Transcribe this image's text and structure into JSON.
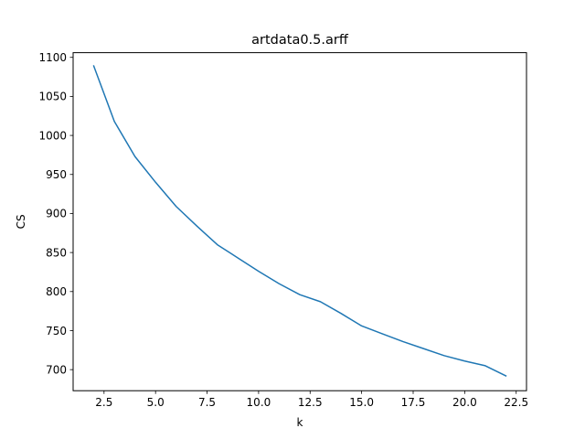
{
  "chart_data": {
    "type": "line",
    "title": "artdata0.5.arff",
    "xlabel": "k",
    "ylabel": "CS",
    "xlim": [
      1.0,
      23.0
    ],
    "ylim": [
      673.0,
      1106.0
    ],
    "xticks": [
      2.5,
      5.0,
      7.5,
      10.0,
      12.5,
      15.0,
      17.5,
      20.0,
      22.5
    ],
    "xtick_labels": [
      "2.5",
      "5.0",
      "7.5",
      "10.0",
      "12.5",
      "15.0",
      "17.5",
      "20.0",
      "22.5"
    ],
    "yticks": [
      700,
      750,
      800,
      850,
      900,
      950,
      1000,
      1050,
      1100
    ],
    "ytick_labels": [
      "700",
      "750",
      "800",
      "850",
      "900",
      "950",
      "1000",
      "1050",
      "1100"
    ],
    "line_color": "#1f77b4",
    "series": [
      {
        "name": "CS",
        "x": [
          2,
          3,
          4,
          5,
          6,
          7,
          8,
          9,
          10,
          11,
          12,
          13,
          14,
          15,
          16,
          17,
          18,
          19,
          20,
          21,
          22
        ],
        "y": [
          1089,
          1018,
          973,
          940,
          909,
          884,
          860,
          843,
          826,
          810,
          796,
          787,
          772,
          756,
          746,
          736,
          727,
          718,
          711,
          705,
          692
        ]
      }
    ]
  }
}
